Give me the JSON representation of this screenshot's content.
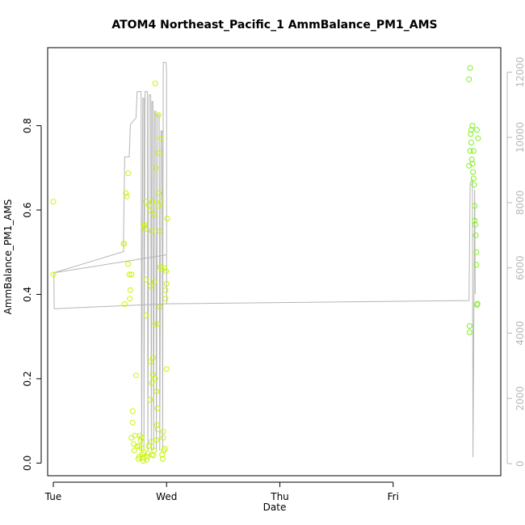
{
  "chart_data": {
    "type": "scatter",
    "title": "ATOM4 Northeast_Pacific_1 AmmBalance_PM1_AMS",
    "xlabel": "Date",
    "ylabel": "AmmBalance_PM1_AMS",
    "xlim": [
      -0.05,
      3.95
    ],
    "ylim": [
      -0.03,
      0.985
    ],
    "y2lim": [
      -370,
      12750
    ],
    "x_ticks": [
      {
        "x": 0,
        "label": "Tue"
      },
      {
        "x": 1,
        "label": "Wed"
      },
      {
        "x": 2,
        "label": "Thu"
      },
      {
        "x": 3,
        "label": "Fri"
      }
    ],
    "y_ticks": [
      0.0,
      0.2,
      0.4,
      0.6,
      0.8
    ],
    "y_tick_labels": [
      "0.0",
      "0.2",
      "0.4",
      "0.6",
      "0.8"
    ],
    "y2_ticks": [
      0,
      2000,
      4000,
      6000,
      8000,
      10000,
      12000
    ],
    "y2_tick_labels": [
      "0",
      "2000",
      "4000",
      "6000",
      "8000",
      "10000",
      "12000"
    ],
    "grid": false,
    "series": [
      {
        "marker": "open-circle",
        "color": "#c8f400",
        "points": [
          [
            0.0,
            0.62
          ],
          [
            0.0,
            0.447
          ],
          [
            0.62,
            0.52
          ],
          [
            0.625,
            0.52
          ],
          [
            0.63,
            0.377
          ],
          [
            0.64,
            0.64
          ],
          [
            0.65,
            0.632
          ],
          [
            0.66,
            0.687
          ],
          [
            0.66,
            0.472
          ],
          [
            0.67,
            0.447
          ],
          [
            0.675,
            0.39
          ],
          [
            0.68,
            0.41
          ],
          [
            0.69,
            0.447
          ],
          [
            0.69,
            0.06
          ],
          [
            0.7,
            0.123
          ],
          [
            0.7,
            0.096
          ],
          [
            0.71,
            0.045
          ],
          [
            0.715,
            0.03
          ],
          [
            0.72,
            0.065
          ],
          [
            0.73,
            0.208
          ],
          [
            0.74,
            0.04
          ],
          [
            0.75,
            0.01
          ],
          [
            0.76,
            0.015
          ],
          [
            0.765,
            0.065
          ],
          [
            0.77,
            0.055
          ],
          [
            0.78,
            0.035
          ],
          [
            0.785,
            0.02
          ],
          [
            0.79,
            0.012
          ],
          [
            0.795,
            0.005
          ],
          [
            0.8,
            0.025
          ],
          [
            0.8,
            0.56
          ],
          [
            0.805,
            0.565
          ],
          [
            0.81,
            0.555
          ],
          [
            0.815,
            0.62
          ],
          [
            0.82,
            0.435
          ],
          [
            0.82,
            0.35
          ],
          [
            0.825,
            0.008
          ],
          [
            0.83,
            0.015
          ],
          [
            0.835,
            0.022
          ],
          [
            0.84,
            0.04
          ],
          [
            0.845,
            0.61
          ],
          [
            0.85,
            0.6
          ],
          [
            0.855,
            0.15
          ],
          [
            0.86,
            0.24
          ],
          [
            0.865,
            0.05
          ],
          [
            0.87,
            0.19
          ],
          [
            0.87,
            0.55
          ],
          [
            0.875,
            0.62
          ],
          [
            0.88,
            0.25
          ],
          [
            0.885,
            0.018
          ],
          [
            0.89,
            0.59
          ],
          [
            0.895,
            0.43
          ],
          [
            0.9,
            0.9
          ],
          [
            0.9,
            0.33
          ],
          [
            0.905,
            0.7
          ],
          [
            0.91,
            0.055
          ],
          [
            0.915,
            0.09
          ],
          [
            0.92,
            0.08
          ],
          [
            0.92,
            0.13
          ],
          [
            0.925,
            0.61
          ],
          [
            0.93,
            0.825
          ],
          [
            0.93,
            0.735
          ],
          [
            0.935,
            0.64
          ],
          [
            0.94,
            0.55
          ],
          [
            0.94,
            0.37
          ],
          [
            0.945,
            0.465
          ],
          [
            0.95,
            0.77
          ],
          [
            0.95,
            0.62
          ],
          [
            0.955,
            0.46
          ],
          [
            0.96,
            0.02
          ],
          [
            0.965,
            0.01
          ],
          [
            0.97,
            0.075
          ],
          [
            0.97,
            0.06
          ],
          [
            0.975,
            0.03
          ],
          [
            0.98,
            0.462
          ],
          [
            0.985,
            0.034
          ],
          [
            0.99,
            0.41
          ],
          [
            0.99,
            0.39
          ],
          [
            0.995,
            0.455
          ],
          [
            1.0,
            0.223
          ],
          [
            1.0,
            0.425
          ],
          [
            1.005,
            0.58
          ],
          [
            0.9,
            0.2
          ],
          [
            0.88,
            0.21
          ],
          [
            0.86,
            0.42
          ],
          [
            0.78,
            0.06
          ],
          [
            0.76,
            0.04
          ],
          [
            0.92,
            0.33
          ],
          [
            0.91,
            0.17
          ],
          [
            0.89,
            0.03
          ],
          [
            0.87,
            0.02
          ],
          [
            3.67,
            0.91
          ],
          [
            3.68,
            0.937
          ],
          [
            3.67,
            0.705
          ],
          [
            3.675,
            0.31
          ],
          [
            3.675,
            0.325
          ],
          [
            3.68,
            0.74
          ],
          [
            3.685,
            0.78
          ],
          [
            3.69,
            0.79
          ],
          [
            3.69,
            0.76
          ],
          [
            3.695,
            0.72
          ],
          [
            3.7,
            0.8
          ],
          [
            3.7,
            0.71
          ],
          [
            3.705,
            0.69
          ],
          [
            3.71,
            0.675
          ],
          [
            3.715,
            0.66
          ],
          [
            3.72,
            0.61
          ],
          [
            3.72,
            0.575
          ],
          [
            3.725,
            0.565
          ],
          [
            3.73,
            0.54
          ],
          [
            3.735,
            0.5
          ],
          [
            3.735,
            0.47
          ],
          [
            3.74,
            0.375
          ],
          [
            3.745,
            0.378
          ],
          [
            3.75,
            0.77
          ],
          [
            3.74,
            0.79
          ],
          [
            3.71,
            0.74
          ]
        ]
      },
      {
        "kind": "line",
        "axis": "right",
        "color": "#b5b5b5",
        "points": [
          [
            0.0,
            5800
          ],
          [
            0.005,
            5850
          ],
          [
            0.008,
            4750
          ],
          [
            1.0,
            4900
          ],
          [
            1.0,
            6400
          ],
          [
            0.005,
            5850
          ],
          [
            0.62,
            6500
          ],
          [
            0.62,
            7000
          ],
          [
            0.63,
            9400
          ],
          [
            0.67,
            9400
          ],
          [
            0.68,
            10400
          ],
          [
            0.73,
            10600
          ],
          [
            0.74,
            11400
          ],
          [
            0.775,
            11400
          ],
          [
            0.78,
            400
          ],
          [
            0.79,
            11200
          ],
          [
            0.8,
            11200
          ],
          [
            0.8,
            400
          ],
          [
            0.81,
            11400
          ],
          [
            0.83,
            11400
          ],
          [
            0.835,
            400
          ],
          [
            0.845,
            11300
          ],
          [
            0.86,
            11300
          ],
          [
            0.865,
            400
          ],
          [
            0.87,
            11100
          ],
          [
            0.88,
            11100
          ],
          [
            0.885,
            400
          ],
          [
            0.895,
            10800
          ],
          [
            0.905,
            10800
          ],
          [
            0.91,
            400
          ],
          [
            0.92,
            10700
          ],
          [
            0.935,
            10700
          ],
          [
            0.94,
            400
          ],
          [
            0.95,
            10200
          ],
          [
            0.96,
            10200
          ],
          [
            0.965,
            400
          ],
          [
            0.97,
            12300
          ],
          [
            0.995,
            12300
          ],
          [
            1.0,
            12000
          ],
          [
            1.0,
            6400
          ],
          [
            1.0,
            4900
          ],
          [
            3.67,
            5000
          ],
          [
            3.68,
            8600
          ],
          [
            3.7,
            8700
          ],
          [
            3.705,
            200
          ],
          [
            3.72,
            8400
          ],
          [
            3.725,
            5200
          ]
        ]
      }
    ]
  }
}
